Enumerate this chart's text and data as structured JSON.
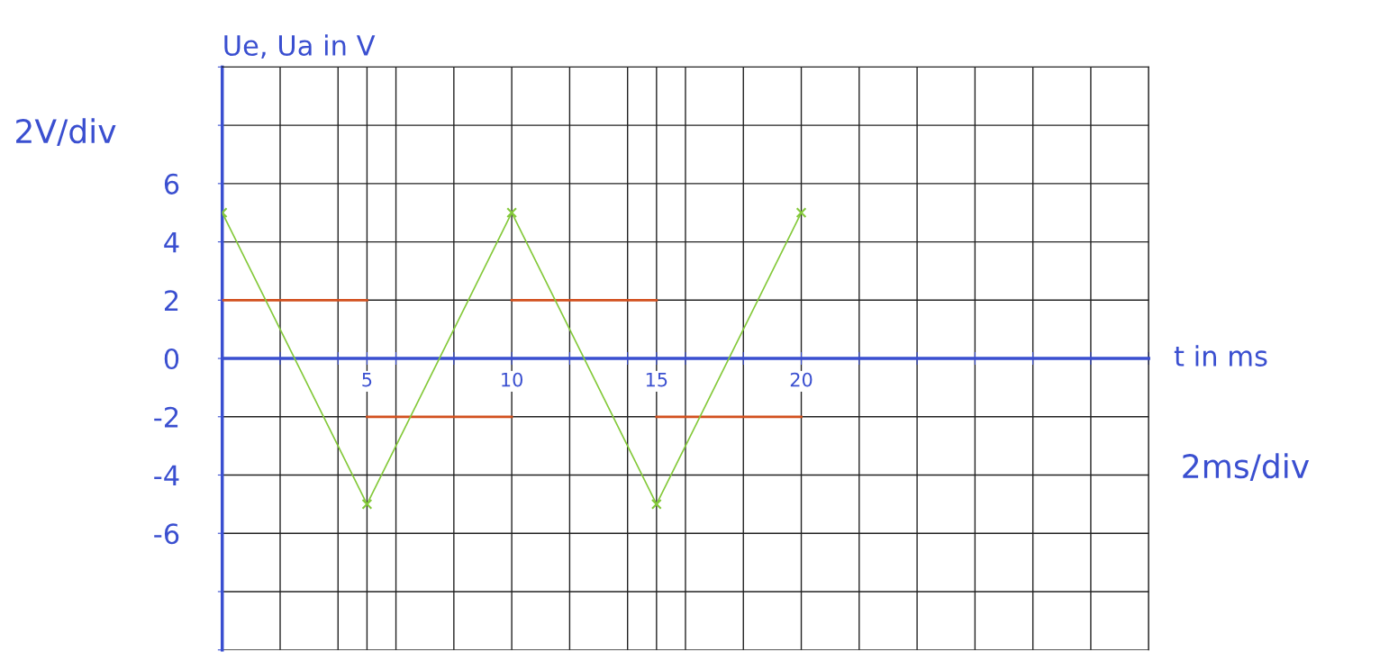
{
  "chart_data": {
    "type": "line",
    "xlabel": "t in ms",
    "ylabel": "Ue, Ua in V",
    "annotations": [
      "2V/div",
      "2ms/div"
    ],
    "series": [
      {
        "x": [
          0,
          5
        ],
        "values": [
          2,
          2
        ],
        "color": "#d2501e",
        "marker": "none"
      },
      {
        "x": [
          5,
          10
        ],
        "values": [
          -2,
          -2
        ],
        "color": "#d2501e",
        "marker": "none"
      },
      {
        "x": [
          10,
          15
        ],
        "values": [
          2,
          2
        ],
        "color": "#d2501e",
        "marker": "none"
      },
      {
        "x": [
          15,
          20
        ],
        "values": [
          -2,
          -2
        ],
        "color": "#d2501e",
        "marker": "none"
      },
      {
        "x": [
          0,
          5,
          10,
          15,
          20
        ],
        "values": [
          5,
          -5,
          5,
          -5,
          5
        ],
        "color": "#84c93a",
        "marker": "cross"
      }
    ],
    "xlim": [
      0,
      32
    ],
    "ylim": [
      -10,
      10
    ],
    "xticks": [
      {
        "value": 2,
        "label": null
      },
      {
        "value": 4,
        "label": null
      },
      5,
      {
        "value": 6,
        "label": null
      },
      {
        "value": 8,
        "label": null
      },
      10,
      {
        "value": 12,
        "label": null
      },
      {
        "value": 14,
        "label": null
      },
      15,
      {
        "value": 16,
        "label": null
      },
      {
        "value": 18,
        "label": null
      },
      20,
      {
        "value": 22,
        "label": null
      },
      {
        "value": 24,
        "label": null
      },
      {
        "value": 26,
        "label": null
      },
      {
        "value": 28,
        "label": null
      },
      {
        "value": 30,
        "label": null
      },
      {
        "value": 32,
        "label": null
      }
    ],
    "yticks": [
      {
        "value": -10,
        "label": null
      },
      {
        "value": -8,
        "label": null
      },
      -6,
      -4,
      -2,
      0,
      2,
      4,
      6,
      {
        "value": 8,
        "label": null
      },
      {
        "value": 10,
        "label": null
      }
    ],
    "grid": true,
    "line_style": "solid"
  }
}
